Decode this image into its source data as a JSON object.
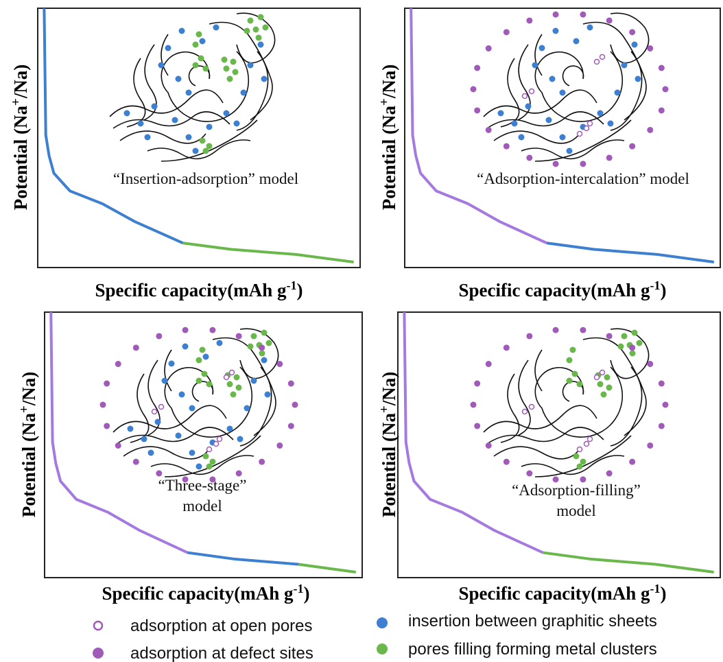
{
  "panels": [
    {
      "y_axis_label": {
        "main": "Potential (Na",
        "sup": "+",
        "end": "/Na)"
      },
      "x_axis_label": {
        "main": "Specific capacity(mAh g",
        "sup": "-1",
        "end": ")"
      },
      "model_label": [
        "“Insertion-adsorption” model"
      ]
    },
    {
      "y_axis_label": {
        "main": "Potential (Na",
        "sup": "+",
        "end": "/Na)"
      },
      "x_axis_label": {
        "main": "Specific capacity(mAh g",
        "sup": "-1",
        "end": ")"
      },
      "model_label": [
        "“Adsorption-intercalation” model"
      ]
    },
    {
      "y_axis_label": {
        "main": "Potential (Na",
        "sup": "+",
        "end": "/Na)"
      },
      "x_axis_label": {
        "main": "Specific capacity(mAh g",
        "sup": "-1",
        "end": ")"
      },
      "model_label": [
        "“Three-stage”",
        "model"
      ]
    },
    {
      "y_axis_label": {
        "main": "Potential (Na",
        "sup": "+",
        "end": "/Na)"
      },
      "x_axis_label": {
        "main": "Specific capacity(mAh g",
        "sup": "-1",
        "end": ")"
      },
      "model_label": [
        "“Adsorption-filling”",
        "model"
      ]
    }
  ],
  "legend": [
    {
      "label": "adsorption at open pores"
    },
    {
      "label": "adsorption at defect sites"
    },
    {
      "label": "insertion between graphitic sheets"
    },
    {
      "label": "pores filling forming metal clusters"
    }
  ]
}
